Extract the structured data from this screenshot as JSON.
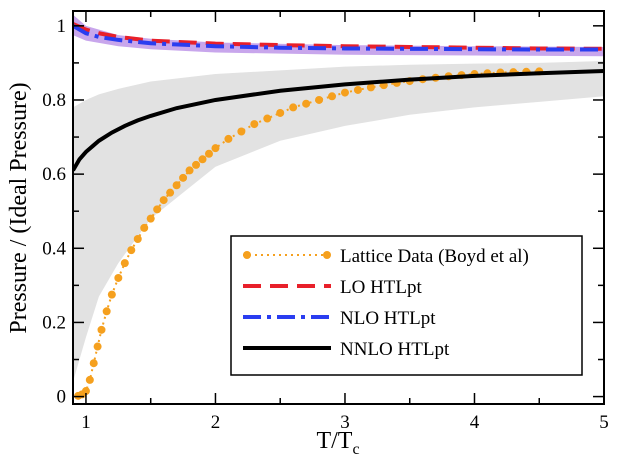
{
  "chart_data": {
    "type": "line",
    "xlabel": "T/T",
    "xlabel_subscript": "c",
    "ylabel": "Pressure / (Ideal Pressure)",
    "xlim": [
      0.9,
      5
    ],
    "ylim": [
      -0.02,
      1.04
    ],
    "x_ticks": [
      1,
      2,
      3,
      4,
      5
    ],
    "x_tick_labels": [
      "1",
      "2",
      "3",
      "4",
      "5"
    ],
    "y_ticks": [
      0,
      0.2,
      0.4,
      0.6,
      0.8,
      1
    ],
    "y_tick_labels": [
      "0",
      "0.2",
      "0.4",
      "0.6",
      "0.8",
      "1"
    ],
    "grid": false,
    "legend_position": "bottom-right",
    "bands": [
      {
        "series": "NNLO HTLpt",
        "color": "#e2e2e2",
        "x": [
          0.9,
          1.0,
          1.1,
          1.25,
          1.5,
          2.0,
          2.5,
          3.0,
          3.5,
          4.0,
          4.5,
          5.0
        ],
        "lower": [
          0.04,
          0.16,
          0.27,
          0.36,
          0.48,
          0.62,
          0.69,
          0.73,
          0.76,
          0.78,
          0.795,
          0.81
        ],
        "upper": [
          0.78,
          0.8,
          0.815,
          0.83,
          0.85,
          0.87,
          0.88,
          0.89,
          0.895,
          0.898,
          0.9,
          0.905
        ]
      },
      {
        "series": "NLO HTLpt",
        "color": "#c8a6ec",
        "x": [
          0.9,
          1.0,
          1.25,
          1.5,
          2.0,
          3.0,
          4.0,
          5.0
        ],
        "lower": [
          0.975,
          0.96,
          0.945,
          0.937,
          0.928,
          0.922,
          0.92,
          0.918
        ],
        "upper": [
          1.03,
          1.0,
          0.975,
          0.965,
          0.955,
          0.948,
          0.945,
          0.943
        ]
      }
    ],
    "series": [
      {
        "name": "Lattice Data (Boyd et al)",
        "color": "#f5a01e",
        "style": "dotted-markers",
        "x": [
          0.94,
          0.97,
          1.0,
          1.03,
          1.06,
          1.09,
          1.12,
          1.16,
          1.2,
          1.25,
          1.3,
          1.35,
          1.4,
          1.45,
          1.5,
          1.55,
          1.6,
          1.65,
          1.7,
          1.75,
          1.8,
          1.85,
          1.9,
          1.95,
          2.0,
          2.1,
          2.2,
          2.3,
          2.4,
          2.5,
          2.6,
          2.7,
          2.8,
          2.9,
          3.0,
          3.1,
          3.2,
          3.3,
          3.4,
          3.5,
          3.6,
          3.7,
          3.8,
          3.9,
          4.0,
          4.1,
          4.2,
          4.3,
          4.4,
          4.5
        ],
        "y": [
          0.002,
          0.006,
          0.015,
          0.045,
          0.09,
          0.135,
          0.18,
          0.23,
          0.275,
          0.32,
          0.36,
          0.395,
          0.425,
          0.455,
          0.48,
          0.505,
          0.53,
          0.55,
          0.57,
          0.59,
          0.61,
          0.625,
          0.64,
          0.655,
          0.67,
          0.695,
          0.715,
          0.735,
          0.75,
          0.765,
          0.78,
          0.79,
          0.8,
          0.81,
          0.82,
          0.827,
          0.834,
          0.84,
          0.846,
          0.851,
          0.856,
          0.86,
          0.864,
          0.867,
          0.87,
          0.872,
          0.874,
          0.875,
          0.876,
          0.877
        ]
      },
      {
        "name": "LO HTLpt",
        "color": "#e8202a",
        "style": "dashed",
        "x": [
          0.9,
          1.0,
          1.1,
          1.25,
          1.5,
          2.0,
          2.5,
          3.0,
          3.5,
          4.0,
          4.5,
          5.0
        ],
        "y": [
          1.005,
          0.99,
          0.98,
          0.97,
          0.96,
          0.952,
          0.948,
          0.945,
          0.943,
          0.941,
          0.939,
          0.938
        ]
      },
      {
        "name": "NLO HTLpt",
        "color": "#2a3df0",
        "style": "dash-dot",
        "x": [
          0.9,
          1.0,
          1.1,
          1.25,
          1.5,
          2.0,
          2.5,
          3.0,
          3.5,
          4.0,
          4.5,
          5.0
        ],
        "y": [
          1.0,
          0.98,
          0.97,
          0.962,
          0.953,
          0.945,
          0.941,
          0.939,
          0.938,
          0.937,
          0.936,
          0.936
        ]
      },
      {
        "name": "NNLO HTLpt",
        "color": "#000000",
        "style": "solid",
        "x": [
          0.9,
          0.95,
          1.0,
          1.05,
          1.1,
          1.2,
          1.3,
          1.4,
          1.5,
          1.7,
          2.0,
          2.5,
          3.0,
          3.5,
          4.0,
          4.5,
          5.0
        ],
        "y": [
          0.61,
          0.64,
          0.66,
          0.675,
          0.69,
          0.712,
          0.73,
          0.745,
          0.757,
          0.778,
          0.8,
          0.825,
          0.842,
          0.855,
          0.865,
          0.872,
          0.878
        ]
      }
    ]
  }
}
